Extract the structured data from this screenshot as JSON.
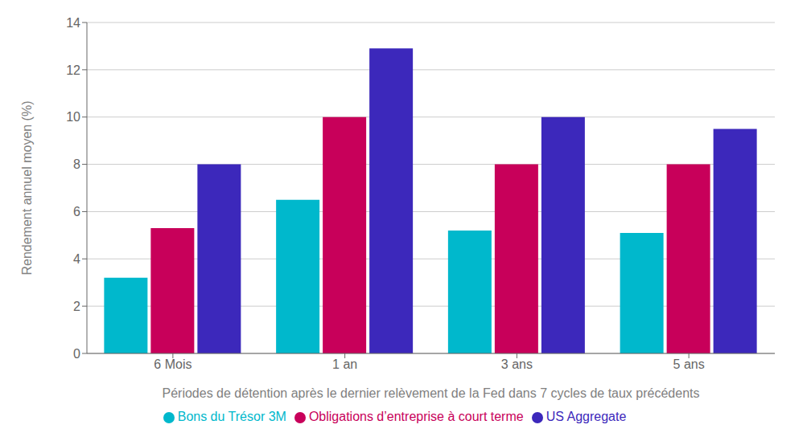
{
  "chart_data": {
    "type": "bar",
    "xlabel": "Périodes de détention après le dernier relèvement de la Fed dans 7 cycles de taux précédents",
    "ylabel": "Rendement annuel moyen (%)",
    "categories": [
      "6 Mois",
      "1 an",
      "3 ans",
      "5 ans"
    ],
    "series": [
      {
        "name": "Bons du Trésor 3M",
        "color": "#00B8CC",
        "values": [
          3.2,
          6.5,
          5.2,
          5.1
        ]
      },
      {
        "name": "Obligations d’entreprise à court terme",
        "color": "#C8005A",
        "values": [
          5.3,
          10.0,
          8.0,
          8.0
        ]
      },
      {
        "name": "US Aggregate",
        "color": "#3C28BB",
        "values": [
          8.0,
          12.9,
          10.0,
          9.5
        ]
      }
    ],
    "ylim": [
      0,
      14
    ],
    "yticks": [
      0,
      2,
      4,
      6,
      8,
      10,
      12,
      14
    ],
    "grid": true,
    "legend": "bottom"
  }
}
